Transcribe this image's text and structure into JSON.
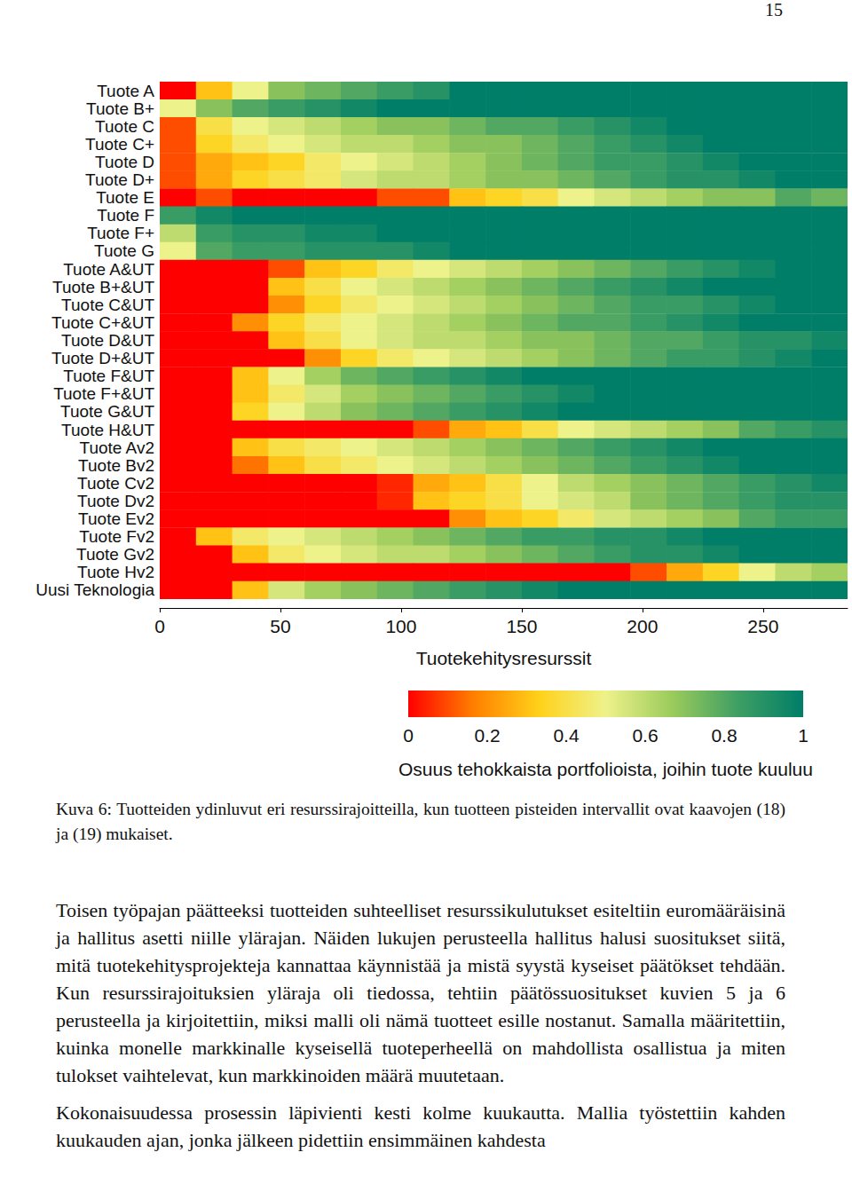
{
  "page_number": "15",
  "chart_data": {
    "type": "heatmap",
    "y_categories": [
      "Tuote A",
      "Tuote B+",
      "Tuote C",
      "Tuote C+",
      "Tuote D",
      "Tuote D+",
      "Tuote E",
      "Tuote F",
      "Tuote F+",
      "Tuote G",
      "Tuote A&UT",
      "Tuote B+&UT",
      "Tuote C&UT",
      "Tuote C+&UT",
      "Tuote D&UT",
      "Tuote D+&UT",
      "Tuote F&UT",
      "Tuote F+&UT",
      "Tuote G&UT",
      "Tuote H&UT",
      "Tuote Av2",
      "Tuote Bv2",
      "Tuote Cv2",
      "Tuote Dv2",
      "Tuote Ev2",
      "Tuote Fv2",
      "Tuote Gv2",
      "Tuote Hv2",
      "Uusi Teknologia"
    ],
    "x_bins": [
      0,
      15,
      30,
      45,
      60,
      75,
      90,
      105,
      120,
      135,
      150,
      165,
      180,
      195,
      210,
      225,
      240,
      255,
      270,
      285
    ],
    "cells": [
      [
        0,
        0.3,
        0.5,
        0.7,
        0.75,
        0.8,
        0.85,
        0.9,
        1,
        1,
        1,
        1,
        1,
        1,
        1,
        1,
        1,
        1,
        1
      ],
      [
        0.5,
        0.7,
        0.8,
        0.85,
        0.9,
        0.95,
        1,
        1,
        1,
        1,
        1,
        1,
        1,
        1,
        1,
        1,
        1,
        1,
        1
      ],
      [
        0.1,
        0.4,
        0.5,
        0.55,
        0.6,
        0.65,
        0.7,
        0.7,
        0.75,
        0.8,
        0.8,
        0.85,
        0.9,
        0.95,
        1,
        1,
        1,
        1,
        1
      ],
      [
        0.1,
        0.35,
        0.45,
        0.5,
        0.55,
        0.6,
        0.6,
        0.65,
        0.7,
        0.7,
        0.75,
        0.8,
        0.85,
        0.9,
        0.95,
        1,
        1,
        1,
        1
      ],
      [
        0.1,
        0.25,
        0.3,
        0.35,
        0.45,
        0.5,
        0.55,
        0.6,
        0.65,
        0.7,
        0.75,
        0.8,
        0.85,
        0.85,
        0.9,
        0.95,
        1,
        1,
        1
      ],
      [
        0.1,
        0.25,
        0.35,
        0.4,
        0.45,
        0.55,
        0.6,
        0.6,
        0.65,
        0.7,
        0.7,
        0.75,
        0.8,
        0.85,
        0.9,
        0.9,
        0.95,
        1,
        1
      ],
      [
        0,
        0.1,
        0,
        0,
        0,
        0,
        0.1,
        0.1,
        0.3,
        0.35,
        0.4,
        0.5,
        0.55,
        0.6,
        0.65,
        0.7,
        0.7,
        0.8,
        0.75
      ],
      [
        0.85,
        0.95,
        1,
        1,
        1,
        1,
        1,
        1,
        1,
        1,
        1,
        1,
        1,
        1,
        1,
        1,
        1,
        1,
        1
      ],
      [
        0.6,
        0.85,
        0.9,
        0.9,
        0.95,
        0.95,
        1,
        1,
        1,
        1,
        1,
        1,
        1,
        1,
        1,
        1,
        1,
        1,
        1
      ],
      [
        0.5,
        0.8,
        0.85,
        0.85,
        0.9,
        0.9,
        0.9,
        0.95,
        1,
        1,
        1,
        1,
        1,
        1,
        1,
        1,
        1,
        1,
        1
      ],
      [
        0,
        0,
        0,
        0.1,
        0.3,
        0.35,
        0.45,
        0.5,
        0.55,
        0.6,
        0.65,
        0.7,
        0.75,
        0.8,
        0.85,
        0.9,
        0.95,
        1,
        1
      ],
      [
        0,
        0,
        0,
        0.3,
        0.4,
        0.5,
        0.55,
        0.6,
        0.65,
        0.7,
        0.75,
        0.8,
        0.85,
        0.9,
        0.95,
        1,
        1,
        1,
        1
      ],
      [
        0,
        0,
        0,
        0.2,
        0.35,
        0.45,
        0.5,
        0.55,
        0.6,
        0.65,
        0.7,
        0.75,
        0.8,
        0.85,
        0.85,
        0.9,
        0.95,
        1,
        1
      ],
      [
        0,
        0,
        0.2,
        0.35,
        0.45,
        0.5,
        0.55,
        0.6,
        0.65,
        0.7,
        0.75,
        0.8,
        0.8,
        0.85,
        0.9,
        0.95,
        1,
        1,
        1
      ],
      [
        0,
        0,
        0,
        0.3,
        0.4,
        0.5,
        0.55,
        0.6,
        0.6,
        0.65,
        0.7,
        0.7,
        0.75,
        0.8,
        0.8,
        0.85,
        0.9,
        0.9,
        0.95
      ],
      [
        0,
        0,
        0,
        0,
        0.2,
        0.35,
        0.45,
        0.5,
        0.55,
        0.6,
        0.65,
        0.7,
        0.75,
        0.8,
        0.85,
        0.85,
        0.9,
        0.95,
        1
      ],
      [
        0,
        0,
        0.3,
        0.5,
        0.65,
        0.75,
        0.8,
        0.85,
        0.9,
        0.95,
        1,
        1,
        1,
        1,
        1,
        1,
        1,
        1,
        1
      ],
      [
        0,
        0,
        0.3,
        0.45,
        0.55,
        0.65,
        0.7,
        0.75,
        0.8,
        0.85,
        0.9,
        0.95,
        1,
        1,
        1,
        1,
        1,
        1,
        1
      ],
      [
        0,
        0,
        0.35,
        0.5,
        0.6,
        0.7,
        0.75,
        0.8,
        0.85,
        0.9,
        0.95,
        1,
        1,
        1,
        1,
        1,
        1,
        1,
        1
      ],
      [
        0,
        0,
        0,
        0,
        0,
        0,
        0,
        0.1,
        0.25,
        0.3,
        0.4,
        0.5,
        0.55,
        0.6,
        0.65,
        0.7,
        0.8,
        0.85,
        0.9
      ],
      [
        0,
        0,
        0.3,
        0.4,
        0.45,
        0.5,
        0.55,
        0.6,
        0.65,
        0.7,
        0.75,
        0.8,
        0.85,
        0.9,
        0.95,
        1,
        1,
        1,
        1
      ],
      [
        0,
        0,
        0.15,
        0.3,
        0.4,
        0.45,
        0.5,
        0.55,
        0.6,
        0.65,
        0.7,
        0.75,
        0.8,
        0.85,
        0.9,
        0.95,
        1,
        1,
        1
      ],
      [
        0,
        0,
        0,
        0,
        0,
        0,
        0.05,
        0.25,
        0.3,
        0.4,
        0.5,
        0.6,
        0.65,
        0.7,
        0.75,
        0.8,
        0.85,
        0.9,
        0.95
      ],
      [
        0,
        0,
        0,
        0,
        0,
        0,
        0.05,
        0.3,
        0.35,
        0.4,
        0.5,
        0.55,
        0.6,
        0.7,
        0.75,
        0.8,
        0.85,
        0.9,
        0.9
      ],
      [
        0,
        0,
        0,
        0,
        0,
        0,
        0,
        0,
        0.2,
        0.3,
        0.35,
        0.45,
        0.55,
        0.6,
        0.65,
        0.7,
        0.8,
        0.85,
        0.85
      ],
      [
        0,
        0.3,
        0.45,
        0.5,
        0.55,
        0.6,
        0.65,
        0.7,
        0.75,
        0.8,
        0.85,
        0.85,
        0.9,
        0.9,
        0.95,
        1,
        1,
        1,
        1
      ],
      [
        0,
        0,
        0.3,
        0.45,
        0.5,
        0.55,
        0.6,
        0.6,
        0.65,
        0.7,
        0.75,
        0.8,
        0.85,
        0.9,
        0.9,
        0.95,
        1,
        1,
        1
      ],
      [
        0,
        0,
        0,
        0,
        0,
        0,
        0,
        0,
        0,
        0,
        0,
        0,
        0,
        0.1,
        0.25,
        0.35,
        0.5,
        0.6,
        0.65
      ],
      [
        0,
        0,
        0.3,
        0.55,
        0.65,
        0.7,
        0.75,
        0.8,
        0.85,
        0.9,
        0.95,
        1,
        1,
        1,
        1,
        1,
        1,
        1,
        1
      ]
    ],
    "xlim": [
      0,
      285
    ],
    "xticks": [
      0,
      50,
      100,
      150,
      200,
      250
    ],
    "x_label": "Tuotekehitysresurssit",
    "color_range": [
      0,
      1
    ],
    "color_ticks": [
      0,
      0.2,
      0.4,
      0.6,
      0.8,
      1
    ],
    "color_label": "Osuus tehokkaista portfolioista, joihin tuote kuuluu"
  },
  "caption": "Kuva 6: Tuotteiden ydinluvut eri resurssirajoitteilla, kun tuotteen pisteiden intervallit ovat kaavojen (18) ja (19) mukaiset.",
  "paragraphs": [
    "Toisen työpajan päätteeksi tuotteiden suhteelliset resurssikulutukset esiteltiin euromääräisinä ja hallitus asetti niille ylärajan. Näiden lukujen perusteella hallitus halusi suositukset siitä, mitä tuotekehitysprojekteja kannattaa käynnistää ja mistä syystä kyseiset päätökset tehdään. Kun resurssirajoituksien yläraja oli tiedossa, tehtiin päätössuositukset kuvien 5 ja 6 perusteella ja kirjoitettiin, miksi malli oli nämä tuotteet esille nostanut. Samalla määritettiin, kuinka monelle markkinalle kyseisellä tuoteperheellä on mahdollista osallistua ja miten tulokset vaihtelevat, kun markkinoiden määrä muutetaan.",
    "Kokonaisuudessa prosessin läpivienti kesti kolme kuukautta. Mallia työstettiin kahden kuukauden ajan, jonka jälkeen pidettiin ensimmäinen kahdesta"
  ]
}
